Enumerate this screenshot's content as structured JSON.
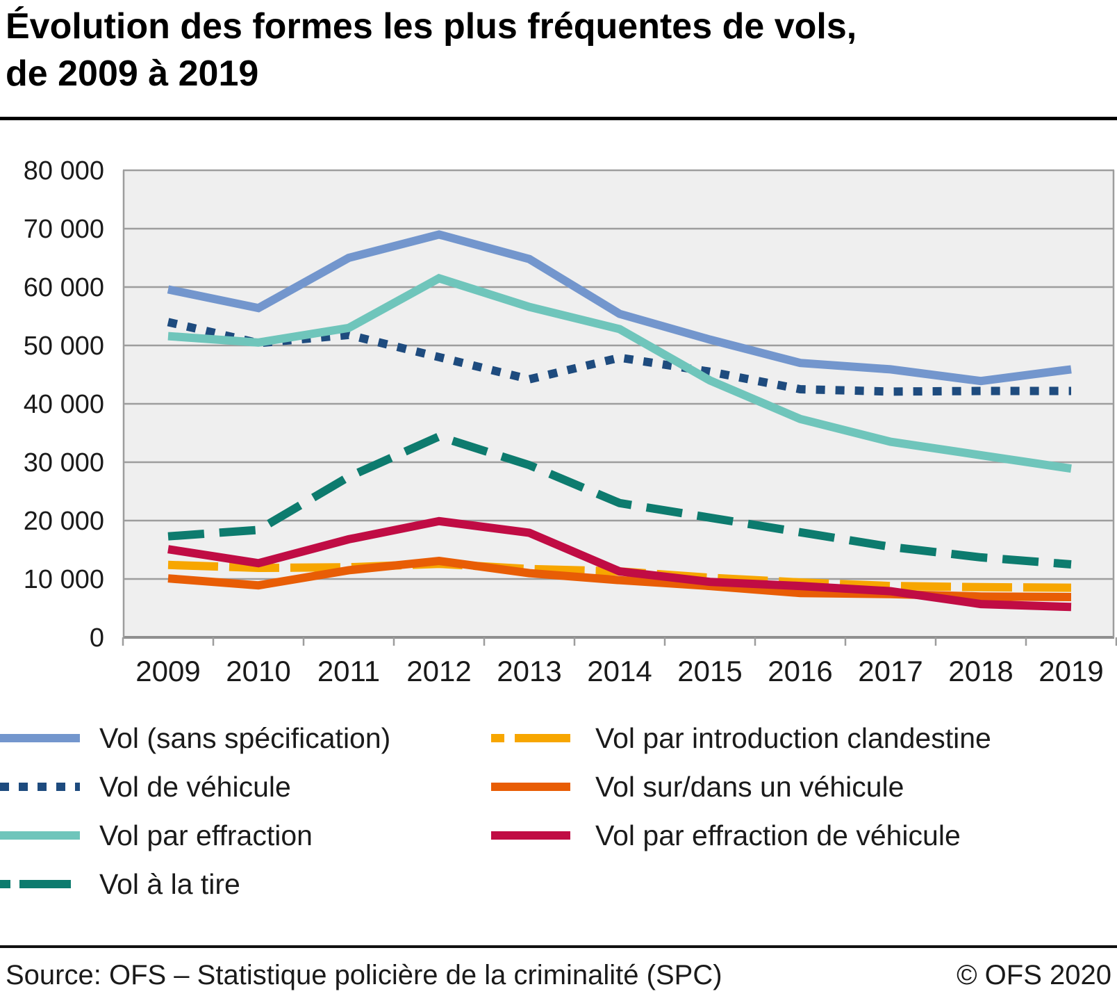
{
  "title": {
    "line1": "Évolution des formes les plus fréquentes de vols,",
    "line2": "de 2009 à 2019"
  },
  "footer": {
    "source": "Source: OFS – Statistique policière de la criminalité (SPC)",
    "copyright": "© OFS 2020"
  },
  "chart_data": {
    "type": "line",
    "title": "Évolution des formes les plus fréquentes de vols, de 2009 à 2019",
    "categories": [
      "2009",
      "2010",
      "2011",
      "2012",
      "2013",
      "2014",
      "2015",
      "2016",
      "2017",
      "2018",
      "2019"
    ],
    "ylim": [
      0,
      80000
    ],
    "y_tick_step": 10000,
    "y_tick_labels": [
      "0",
      "10 000",
      "20 000",
      "30 000",
      "40 000",
      "50 000",
      "60 000",
      "70 000",
      "80 000"
    ],
    "grid": true,
    "legend_position": "bottom",
    "plot_bg_color": "#EFEFEF",
    "grid_color": "#9D9D9D",
    "axis_color": "#8F8F8F",
    "series": [
      {
        "name": "Vol (sans spécification)",
        "color": "#7396CD",
        "dash": null,
        "legend_dash": null,
        "values": [
          59600,
          56400,
          65000,
          69000,
          64800,
          55400,
          51000,
          47000,
          45900,
          43900,
          45900
        ]
      },
      {
        "name": "Vol de véhicule",
        "color": "#1E4B7E",
        "dash": "13 15",
        "legend_dash": "13 14",
        "values": [
          54000,
          50400,
          51800,
          48000,
          44200,
          47900,
          45500,
          42500,
          42100,
          42200,
          42200
        ]
      },
      {
        "name": "Vol par effraction",
        "color": "#6FC5BB",
        "dash": null,
        "legend_dash": null,
        "values": [
          51600,
          50500,
          53000,
          61500,
          56600,
          52800,
          44000,
          37400,
          33500,
          31200,
          28900
        ]
      },
      {
        "name": "Vol à la tire",
        "color": "#0D7B6E",
        "dash": "52 22",
        "legend_dash": "15 13 74 999",
        "values": [
          17300,
          18400,
          27500,
          34400,
          29500,
          23000,
          20500,
          18000,
          15500,
          13700,
          12500
        ]
      },
      {
        "name": "Vol par introduction clandestine",
        "color": "#F7A600",
        "dash": "72 16",
        "legend_dash": "19 15 80 999",
        "values": [
          12400,
          11900,
          12000,
          12600,
          11700,
          11300,
          10200,
          9400,
          8800,
          8600,
          8500
        ]
      },
      {
        "name": "Vol sur/dans un véhicule",
        "color": "#E85D05",
        "dash": null,
        "legend_dash": null,
        "values": [
          10100,
          8900,
          11500,
          13100,
          11000,
          9800,
          8800,
          7600,
          7400,
          7000,
          6900
        ]
      },
      {
        "name": "Vol par effraction de véhicule",
        "color": "#C00C44",
        "dash": null,
        "legend_dash": null,
        "values": [
          15100,
          12700,
          16800,
          19900,
          17900,
          11300,
          9500,
          8800,
          7900,
          5700,
          5200
        ]
      }
    ],
    "legend_columns": {
      "left": [
        0,
        1,
        2,
        3
      ],
      "right": [
        4,
        5,
        6
      ]
    }
  }
}
